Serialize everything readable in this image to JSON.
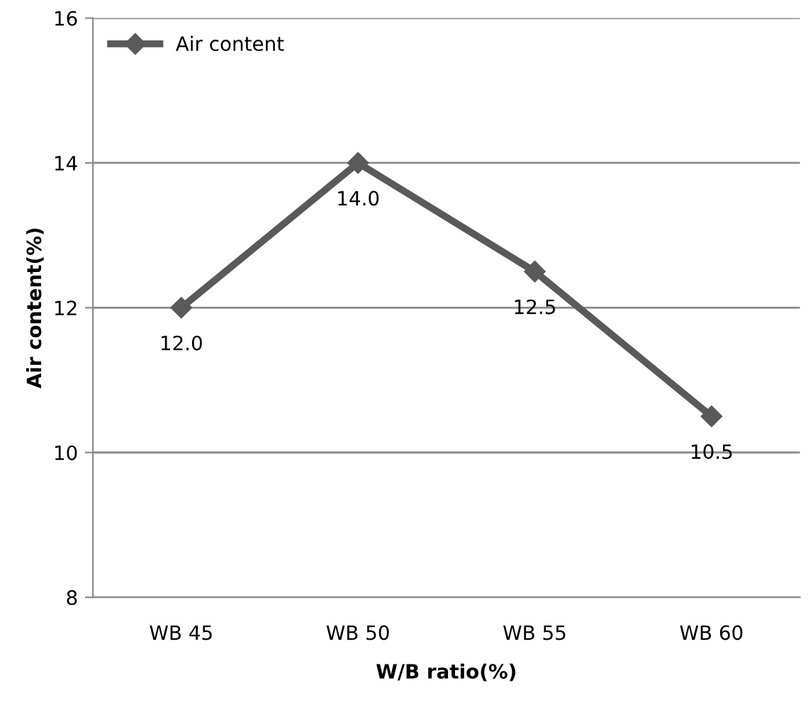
{
  "chart_data": {
    "type": "line",
    "xlabel": "W/B ratio(%)",
    "ylabel": "Air content(%)",
    "categories": [
      "WB 45",
      "WB 50",
      "WB 55",
      "WB 60"
    ],
    "series": [
      {
        "name": "Air content",
        "color": "#5a5a5a",
        "values": [
          12.0,
          14.0,
          12.5,
          10.5
        ],
        "value_labels": [
          "12.0",
          "14.0",
          "12.5",
          "10.5"
        ]
      }
    ],
    "ylim": [
      8,
      16
    ],
    "yticks": [
      8,
      10,
      12,
      14,
      16
    ],
    "grid": "y",
    "legend": "top left",
    "marker": "diamond",
    "line_style": "solid"
  }
}
